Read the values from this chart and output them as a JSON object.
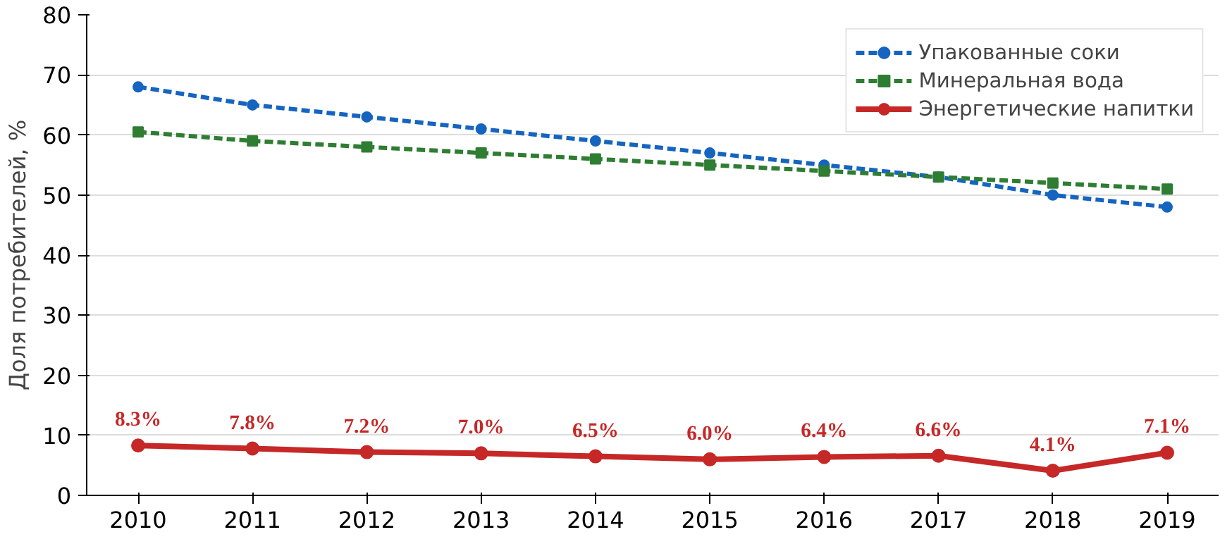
{
  "chart_data": {
    "type": "line",
    "ylabel": "Доля потребителей, %",
    "x": [
      2010,
      2011,
      2012,
      2013,
      2014,
      2015,
      2016,
      2017,
      2018,
      2019
    ],
    "xlim": [
      2009.55,
      2019.45
    ],
    "xticks": [
      2010,
      2011,
      2012,
      2013,
      2014,
      2015,
      2016,
      2017,
      2018,
      2019
    ],
    "ylim": [
      0,
      80
    ],
    "yticks": [
      0,
      10,
      20,
      30,
      40,
      50,
      60,
      70,
      80
    ],
    "grid": "y",
    "legend": "top right",
    "series": [
      {
        "name": "Упакованные соки",
        "color": "#1565c0",
        "marker": "circle",
        "line_style": "dashed",
        "values": [
          68,
          65,
          63,
          61,
          59,
          57,
          55,
          53,
          50,
          48
        ]
      },
      {
        "name": "Минеральная вода",
        "color": "#2e7d32",
        "marker": "square",
        "line_style": "dashed",
        "values": [
          60.5,
          59,
          58,
          57,
          56,
          55,
          54,
          53,
          52,
          51
        ]
      },
      {
        "name": "Энергетические напитки",
        "color": "#c62828",
        "marker": "circle",
        "line_style": "solid",
        "values": [
          8.3,
          7.8,
          7.2,
          7.0,
          6.5,
          6.0,
          6.4,
          6.6,
          4.1,
          7.1
        ],
        "value_labels": [
          "8.3%",
          "7.8%",
          "7.2%",
          "7.0%",
          "6.5%",
          "6.0%",
          "6.4%",
          "6.6%",
          "4.1%",
          "7.1%"
        ]
      }
    ]
  }
}
